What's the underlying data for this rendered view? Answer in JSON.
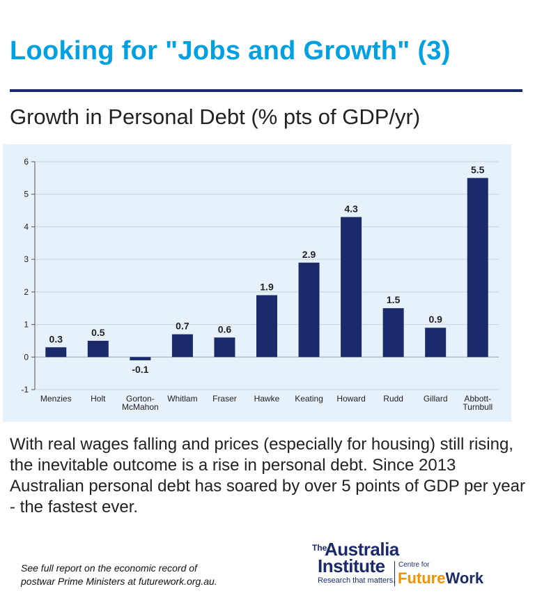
{
  "header": {
    "title": "Looking for \"Jobs and Growth\" (3)",
    "subtitle": "Growth in Personal Debt (% pts of GDP/yr)"
  },
  "body_text": "With real wages falling and prices (especially for housing) still rising, the inevitable outcome is a rise in personal debt. Since 2013 Australian personal debt has soared by over 5 points of GDP per year - the fastest ever.",
  "footnote": {
    "line1": "See full report on the economic record of",
    "line2": "postwar Prime Ministers at futurework.org.au."
  },
  "logo": {
    "the": "The",
    "australia": "Australia",
    "institute": "Institute",
    "tagline": "Research that matters.",
    "centre": "Centre for",
    "future": "Future",
    "work": "Work"
  },
  "colors": {
    "title": "#00a0e3",
    "rule": "#1b2a6b",
    "bar": "#1b2a6b",
    "panel": "#e7f1fa",
    "accent_orange": "#f39200"
  },
  "chart_data": {
    "type": "bar",
    "title": "Growth in Personal Debt (% pts of GDP/yr)",
    "categories": [
      [
        "Menzies"
      ],
      [
        "Holt"
      ],
      [
        "Gorton-",
        "McMahon"
      ],
      [
        "Whitlam"
      ],
      [
        "Fraser"
      ],
      [
        "Hawke"
      ],
      [
        "Keating"
      ],
      [
        "Howard"
      ],
      [
        "Rudd"
      ],
      [
        "Gillard"
      ],
      [
        "Abbott-",
        "Turnbull"
      ]
    ],
    "values": [
      0.3,
      0.5,
      -0.1,
      0.7,
      0.6,
      1.9,
      2.9,
      4.3,
      1.5,
      0.9,
      5.5
    ],
    "data_labels": [
      "0.3",
      "0.5",
      "-0.1",
      "0.7",
      "0.6",
      "1.9",
      "2.9",
      "4.3",
      "1.5",
      "0.9",
      "5.5"
    ],
    "yticks": [
      -1,
      0,
      1,
      2,
      3,
      4,
      5,
      6
    ],
    "ylim": [
      -1,
      6
    ],
    "grid": true,
    "legend": "none"
  }
}
